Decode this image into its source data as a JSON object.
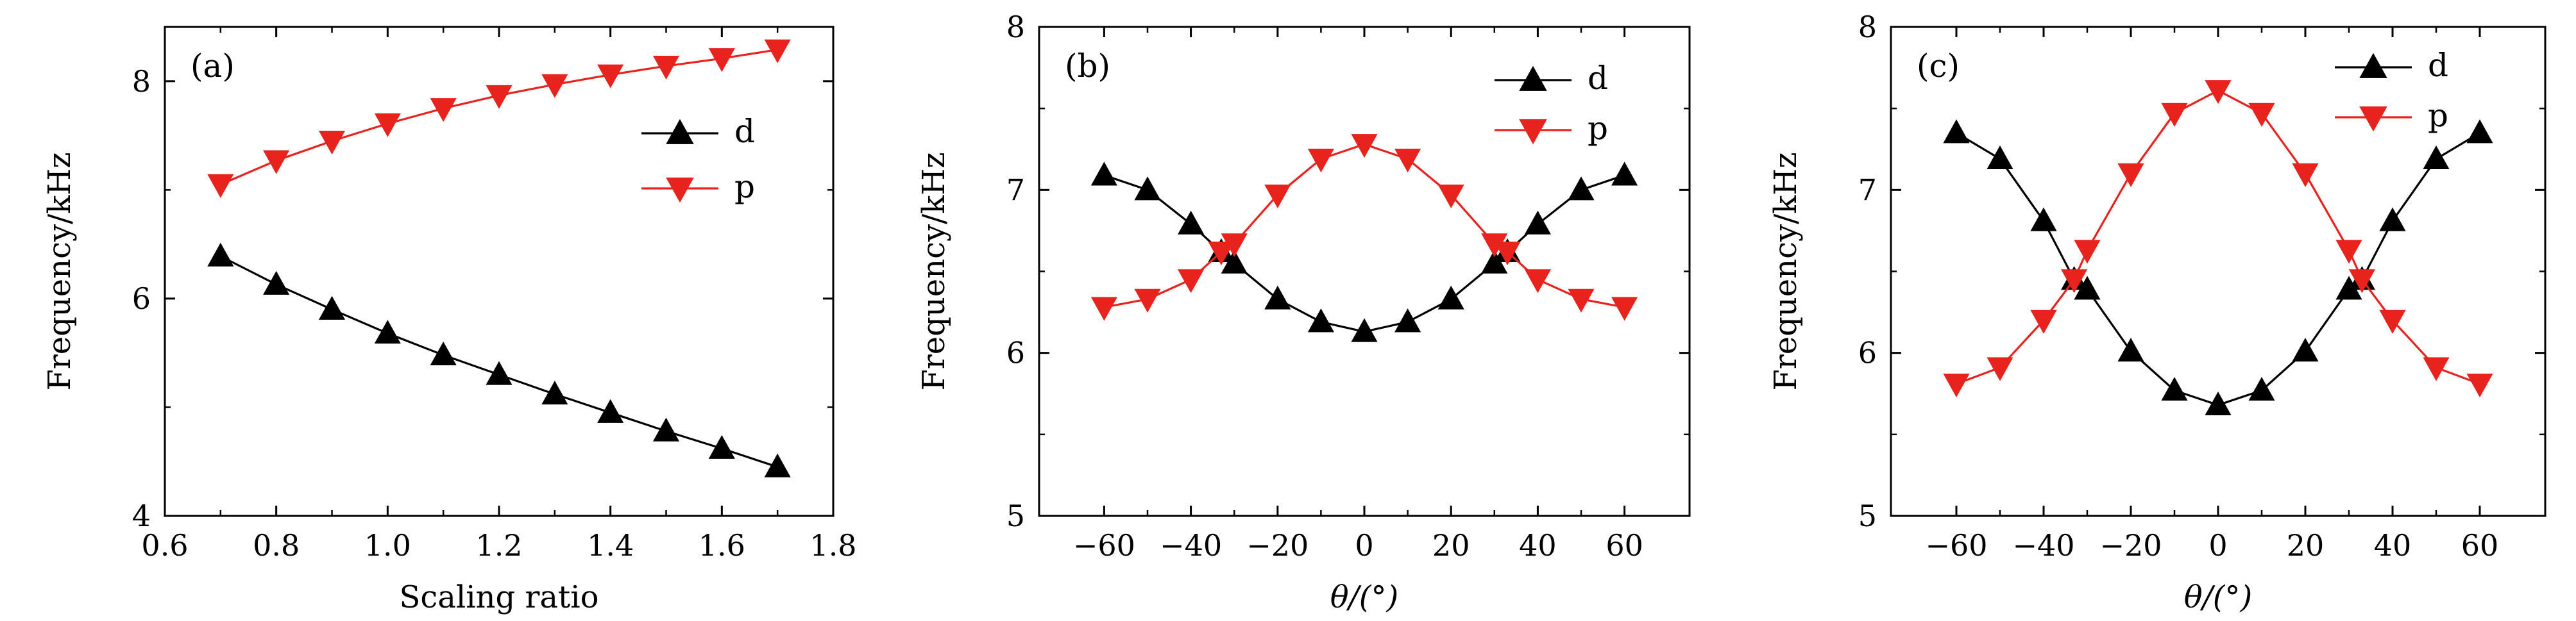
{
  "colors": {
    "d": "#000000",
    "p": "#e8221d",
    "axis": "#000000"
  },
  "chart_data": [
    {
      "type": "line",
      "panel_tag": "(a)",
      "xlabel": "Scaling ratio",
      "ylabel": "Frequency/kHz",
      "xlim": [
        0.6,
        1.8
      ],
      "ylim": [
        4,
        8.5
      ],
      "xticks": [
        0.6,
        0.8,
        1.0,
        1.2,
        1.4,
        1.6,
        1.8
      ],
      "xtick_labels": [
        "0.6",
        "0.8",
        "1.0",
        "1.2",
        "1.4",
        "1.6",
        "1.8"
      ],
      "yticks": [
        4,
        6,
        8
      ],
      "ytick_labels": [
        "4",
        "6",
        "8"
      ],
      "legend_position": "right",
      "x": [
        0.7,
        0.8,
        0.9,
        1.0,
        1.1,
        1.2,
        1.3,
        1.4,
        1.5,
        1.6,
        1.7
      ],
      "series": [
        {
          "name": "d",
          "marker": "triangle-up",
          "values": [
            6.39,
            6.13,
            5.9,
            5.68,
            5.48,
            5.3,
            5.12,
            4.95,
            4.78,
            4.62,
            4.45
          ]
        },
        {
          "name": "p",
          "marker": "triangle-down",
          "values": [
            7.05,
            7.27,
            7.45,
            7.61,
            7.75,
            7.87,
            7.97,
            8.06,
            8.14,
            8.21,
            8.29
          ]
        }
      ]
    },
    {
      "type": "line",
      "panel_tag": "(b)",
      "xlabel": "θ/(°)",
      "ylabel": "Frequency/kHz",
      "xlim": [
        -75,
        75
      ],
      "ylim": [
        5,
        8
      ],
      "xticks": [
        -60,
        -40,
        -20,
        0,
        20,
        40,
        60
      ],
      "xtick_labels": [
        "−60",
        "−40",
        "−20",
        "0",
        "20",
        "40",
        "60"
      ],
      "yticks": [
        5,
        6,
        7,
        8
      ],
      "ytick_labels": [
        "5",
        "6",
        "7",
        "8"
      ],
      "legend_position": "top-right",
      "x": [
        -60,
        -50,
        -40,
        -33,
        -30,
        -20,
        -10,
        0,
        10,
        20,
        30,
        33,
        40,
        50,
        60
      ],
      "series": [
        {
          "name": "d",
          "marker": "triangle-up",
          "values": [
            7.09,
            7.0,
            6.79,
            6.62,
            6.55,
            6.33,
            6.19,
            6.13,
            6.19,
            6.33,
            6.55,
            6.62,
            6.79,
            7.0,
            7.09
          ]
        },
        {
          "name": "p",
          "marker": "triangle-down",
          "values": [
            6.28,
            6.33,
            6.45,
            6.62,
            6.67,
            6.97,
            7.19,
            7.28,
            7.19,
            6.97,
            6.67,
            6.62,
            6.45,
            6.33,
            6.28
          ]
        }
      ]
    },
    {
      "type": "line",
      "panel_tag": "(c)",
      "xlabel": "θ/(°)",
      "ylabel": "Frequency/kHz",
      "xlim": [
        -75,
        75
      ],
      "ylim": [
        5,
        8
      ],
      "xticks": [
        -60,
        -40,
        -20,
        0,
        20,
        40,
        60
      ],
      "xtick_labels": [
        "−60",
        "−40",
        "−20",
        "0",
        "20",
        "40",
        "60"
      ],
      "yticks": [
        5,
        6,
        7,
        8
      ],
      "ytick_labels": [
        "5",
        "6",
        "7",
        "8"
      ],
      "legend_position": "top-right",
      "x": [
        -60,
        -50,
        -40,
        -33,
        -30,
        -20,
        -10,
        0,
        10,
        20,
        30,
        33,
        40,
        50,
        60
      ],
      "series": [
        {
          "name": "d",
          "marker": "triangle-up",
          "values": [
            7.35,
            7.19,
            6.81,
            6.45,
            6.39,
            6.01,
            5.77,
            5.68,
            5.77,
            6.01,
            6.39,
            6.45,
            6.81,
            7.19,
            7.35
          ]
        },
        {
          "name": "p",
          "marker": "triangle-down",
          "values": [
            5.81,
            5.91,
            6.2,
            6.45,
            6.63,
            7.1,
            7.47,
            7.61,
            7.47,
            7.1,
            6.63,
            6.45,
            6.2,
            5.91,
            5.81
          ]
        }
      ]
    }
  ]
}
